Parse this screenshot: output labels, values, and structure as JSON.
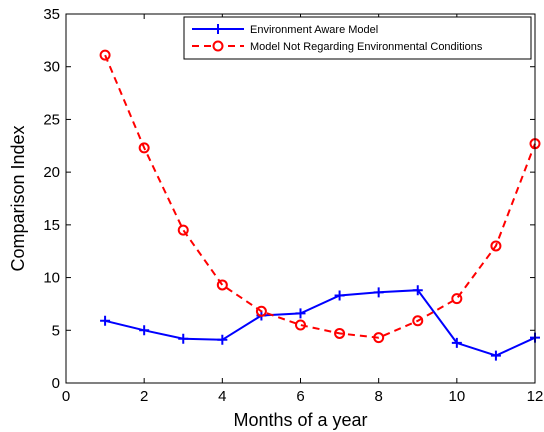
{
  "chart_data": {
    "type": "line",
    "title": "",
    "xlabel": "Months of a year",
    "ylabel": "Comparison Index",
    "xlim": [
      0,
      12
    ],
    "ylim": [
      0,
      35
    ],
    "xticks": [
      0,
      2,
      4,
      6,
      8,
      10,
      12
    ],
    "yticks": [
      0,
      5,
      10,
      15,
      20,
      25,
      30,
      35
    ],
    "grid": false,
    "legend_position": "top-right",
    "x": [
      1,
      2,
      3,
      4,
      5,
      6,
      7,
      8,
      9,
      10,
      11,
      12
    ],
    "series": [
      {
        "name": "Environment Aware Model",
        "color": "#0000ff",
        "line_style": "solid",
        "marker": "plus",
        "values": [
          5.9,
          5.0,
          4.2,
          4.1,
          6.4,
          6.6,
          8.3,
          8.6,
          8.8,
          3.8,
          2.6,
          4.3
        ]
      },
      {
        "name": "Model Not Regarding Environmental Conditions",
        "color": "#ff0000",
        "line_style": "dashed",
        "marker": "circle",
        "values": [
          31.1,
          22.3,
          14.5,
          9.3,
          6.8,
          5.5,
          4.7,
          4.3,
          5.9,
          8.0,
          13.0,
          22.7
        ]
      }
    ]
  }
}
